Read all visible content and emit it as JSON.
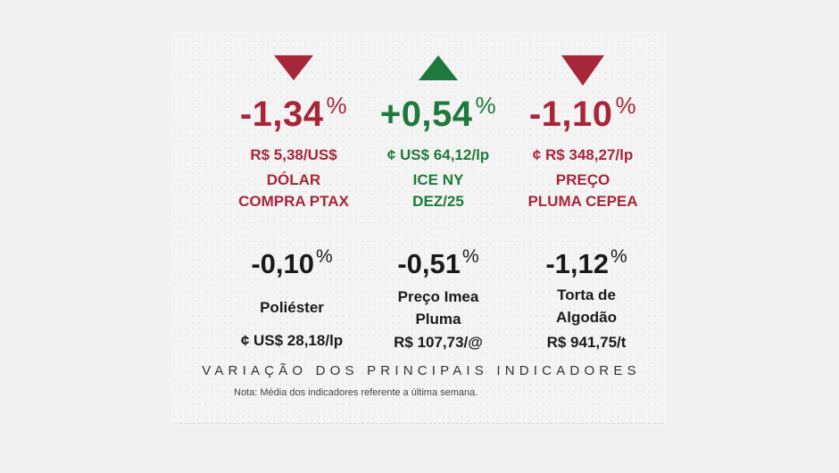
{
  "top": [
    {
      "arrow": "down-arrow",
      "change": "-1,34",
      "pct": "%",
      "price": "R$ 5,38/US$",
      "label1": "DÓLAR",
      "label2": "COMPRA PTAX",
      "color": "#a8263a"
    },
    {
      "arrow": "up-arrow",
      "change": "+0,54",
      "pct": "%",
      "price": "¢ US$ 64,12/lp",
      "label1": "ICE NY",
      "label2": "DEZ/25",
      "color": "#1e7a3c"
    },
    {
      "arrow": "down-arrow",
      "change": "-1,10",
      "pct": "%",
      "price": "¢ R$ 348,27/lp",
      "label1": "PREÇO",
      "label2": "PLUMA CEPEA",
      "color": "#a8263a"
    }
  ],
  "bottom": [
    {
      "change": "-0,10",
      "pct": "%",
      "label1": "Poliéster",
      "label2": "",
      "price": "¢ US$ 28,18/lp"
    },
    {
      "change": "-0,51",
      "pct": "%",
      "label1": "Preço Imea",
      "label2": "Pluma",
      "price": "R$ 107,73/@"
    },
    {
      "change": "-1,12",
      "pct": "%",
      "label1": "Torta de",
      "label2": "Algodão",
      "price": "R$ 941,75/t"
    }
  ],
  "footer": {
    "title": "VARIAÇÃO DOS PRINCIPAIS INDICADORES",
    "note": "Nota: Média dos indicadores referente a última semana."
  }
}
